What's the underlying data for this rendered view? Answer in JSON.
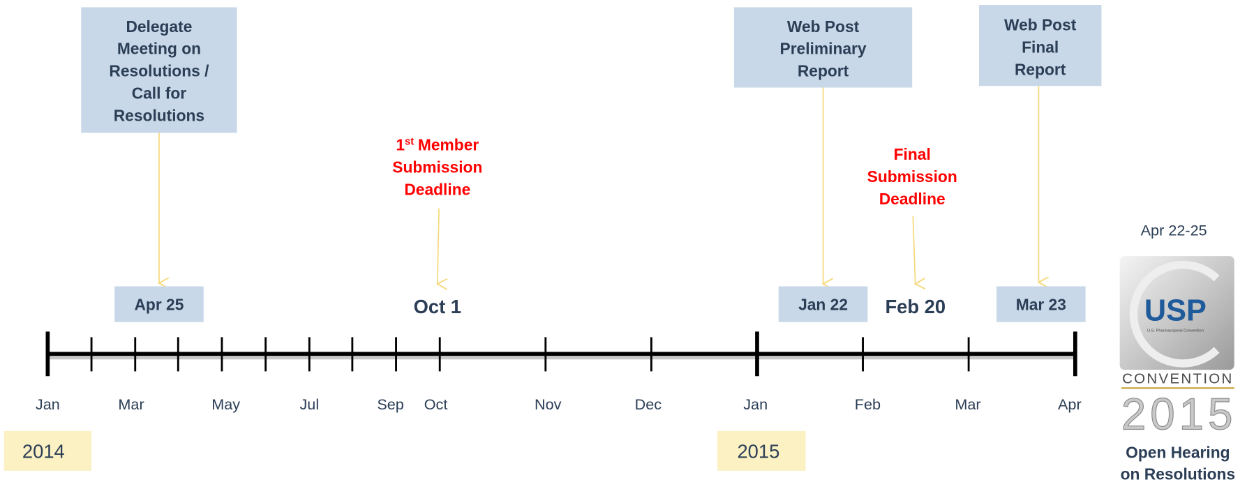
{
  "events": [
    {
      "lines": [
        "Delegate",
        "Meeting on",
        "Resolutions /",
        "Call for",
        "Resolutions"
      ],
      "date": "Apr 25"
    },
    {
      "ordinal": "1",
      "ordinal_suffix": "st",
      "lines": [
        "Member",
        "Submission",
        "Deadline"
      ],
      "date": "Oct 1"
    },
    {
      "lines": [
        "Web Post",
        "Preliminary",
        "Report"
      ],
      "date": "Jan 22"
    },
    {
      "lines": [
        "Final",
        "Submission",
        "Deadline"
      ],
      "date": "Feb 20"
    },
    {
      "lines": [
        "Web Post",
        "Final",
        "Report"
      ],
      "date": "Mar 23"
    }
  ],
  "months": [
    "Jan",
    "Mar",
    "May",
    "Jul",
    "Sep",
    "Oct",
    "Nov",
    "Dec",
    "Jan",
    "Feb",
    "Mar",
    "Apr"
  ],
  "years": [
    "2014",
    "2015"
  ],
  "convention": {
    "dates": "Apr 22-25",
    "logo": {
      "name": "USP",
      "org": "U.S. Pharmacopeial Convention",
      "word": "CONVENTION",
      "year": "2015"
    },
    "caption": [
      "Open Hearing",
      "on Resolutions"
    ]
  }
}
